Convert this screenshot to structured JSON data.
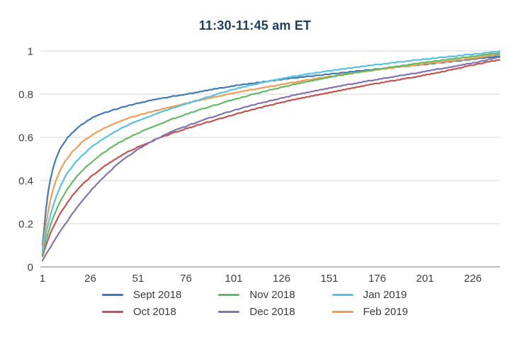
{
  "styles": {
    "background": "#ffffff",
    "title_color": "#1d3d5e",
    "tick_label_color": "#3f3f3f",
    "legend_text_color": "#3a3a3a",
    "gridline_color": "#d4d4d4",
    "axis_line_color": "#aaaaaa"
  },
  "chart_data": {
    "type": "line",
    "title": "11:30-11:45 am ET",
    "xlabel": "",
    "ylabel": "",
    "xlim": [
      1,
      240
    ],
    "ylim": [
      0,
      1
    ],
    "grid": "horizontal-only",
    "legend_position": "bottom-center",
    "legend_rows": 2,
    "x_ticks": [
      "1",
      "26",
      "51",
      "76",
      "101",
      "126",
      "151",
      "176",
      "201",
      "226"
    ],
    "x_tick_values": [
      1,
      26,
      51,
      76,
      101,
      126,
      151,
      176,
      201,
      226
    ],
    "y_ticks": [
      "0",
      "0.2",
      "0.4",
      "0.6",
      "0.8",
      "1"
    ],
    "y_tick_values": [
      0,
      0.2,
      0.4,
      0.6,
      0.8,
      1
    ],
    "curve_style": "empirical-cdf-steps",
    "x": [
      1,
      4,
      8,
      13,
      19,
      26,
      34,
      43,
      53,
      64,
      76,
      101,
      126,
      151,
      176,
      201,
      226,
      240
    ],
    "series": [
      {
        "name": "Sept 2018",
        "color": "#3d7ab7",
        "values": [
          0.1,
          0.35,
          0.5,
          0.585,
          0.64,
          0.685,
          0.715,
          0.74,
          0.762,
          0.782,
          0.8,
          0.838,
          0.868,
          0.893,
          0.916,
          0.938,
          0.962,
          0.975
        ]
      },
      {
        "name": "Oct 2018",
        "color": "#c4524e",
        "values": [
          0.05,
          0.13,
          0.21,
          0.285,
          0.355,
          0.415,
          0.47,
          0.52,
          0.563,
          0.603,
          0.64,
          0.705,
          0.762,
          0.808,
          0.85,
          0.888,
          0.935,
          0.96
        ]
      },
      {
        "name": "Nov 2018",
        "color": "#64b964",
        "values": [
          0.06,
          0.16,
          0.26,
          0.345,
          0.42,
          0.48,
          0.535,
          0.585,
          0.628,
          0.668,
          0.707,
          0.775,
          0.832,
          0.878,
          0.915,
          0.947,
          0.975,
          0.99
        ]
      },
      {
        "name": "Dec 2018",
        "color": "#8172b2",
        "values": [
          0.03,
          0.075,
          0.135,
          0.2,
          0.275,
          0.35,
          0.425,
          0.495,
          0.555,
          0.607,
          0.652,
          0.725,
          0.782,
          0.828,
          0.868,
          0.905,
          0.945,
          0.972
        ]
      },
      {
        "name": "Jan 2019",
        "color": "#59c1e0",
        "values": [
          0.07,
          0.2,
          0.32,
          0.42,
          0.49,
          0.55,
          0.6,
          0.645,
          0.685,
          0.72,
          0.755,
          0.822,
          0.872,
          0.908,
          0.937,
          0.962,
          0.985,
          0.998
        ]
      },
      {
        "name": "Feb 2019",
        "color": "#f29c51",
        "values": [
          0.08,
          0.26,
          0.4,
          0.49,
          0.555,
          0.605,
          0.645,
          0.68,
          0.707,
          0.732,
          0.757,
          0.805,
          0.845,
          0.882,
          0.913,
          0.94,
          0.966,
          0.985
        ]
      }
    ]
  }
}
